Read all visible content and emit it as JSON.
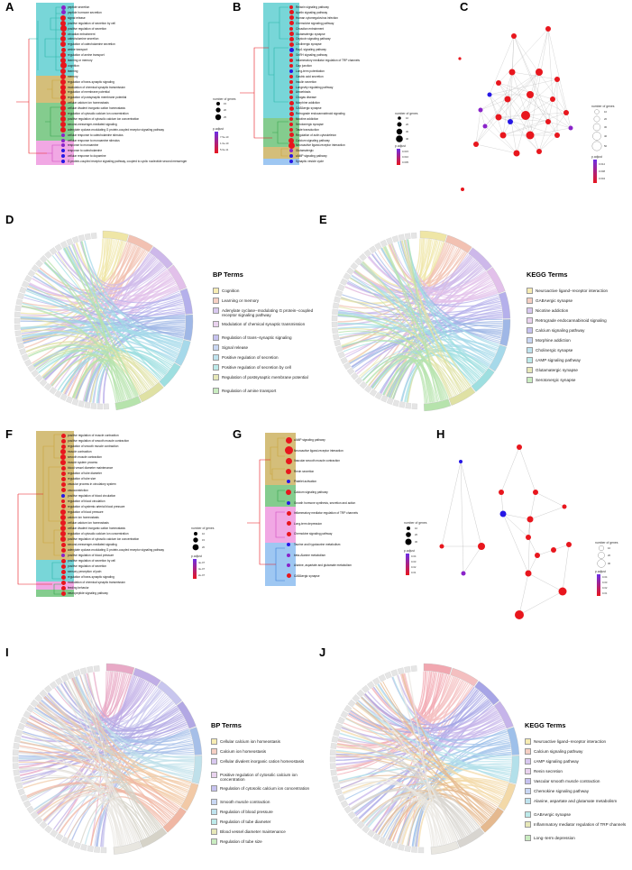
{
  "labels": {
    "A": "A",
    "B": "B",
    "C": "C",
    "D": "D",
    "E": "E",
    "F": "F",
    "G": "G",
    "H": "H",
    "I": "I",
    "J": "J"
  },
  "colors": {
    "bg_teal": "#78d6d8",
    "bg_gold": "#d4be7a",
    "bg_green": "#84cc8e",
    "bg_pink": "#f1a8e4",
    "bg_blue": "#9ec7f2",
    "red": "#e8161d",
    "purple": "#8a23c9",
    "blue": "#2617e6"
  },
  "panelA": {
    "terms": [
      "peptide secretion",
      "peptide hormone secretion",
      "signal release",
      "positive regulation of secretion by cell",
      "positive regulation of secretion",
      "circadian entrainment",
      "catecholamine secretion",
      "regulation of catecholamine secretion",
      "amine transport",
      "regulation of amine transport",
      "learning or memory",
      "cognition",
      "learning",
      "memory",
      "regulation of trans-synaptic signaling",
      "modulation of chemical synaptic transmission",
      "regulation of membrane potential",
      "regulation of postsynaptic membrane potential",
      "cellular calcium ion homeostasis",
      "cellular divalent inorganic cation homeostasis",
      "regulation of cytosolic calcium ion concentration",
      "positive regulation of cytosolic calcium ion concentration",
      "second-messenger-mediated signaling",
      "adenylate cyclase-modulating G protein-coupled receptor signaling pathway",
      "cellular response to catecholamine stimulus",
      "cellular response to monoamine stimulus",
      "response to monoamine",
      "response to catecholamine",
      "cellular response to dopamine",
      "G protein-coupled receptor signaling pathway, coupled to cyclic nucleotide second messenger"
    ],
    "legend": {
      "size_title": "number of genes",
      "sizes": [
        "15",
        "20",
        "25"
      ],
      "color_title": "p.adjust",
      "ticks": [
        "7.5e-10",
        "1.0e-10",
        "5.0e-11"
      ]
    }
  },
  "panelB": {
    "terms": [
      "Relaxin signaling pathway",
      "Apelin signaling pathway",
      "Human cytomegalovirus infection",
      "Chemokine signaling pathway",
      "Circadian entrainment",
      "Glutamatergic synapse",
      "Oxytocin signaling pathway",
      "Cholinergic synapse",
      "Rap1 signaling pathway",
      "GnRH signaling pathway",
      "Inflammatory mediator regulation of TRP channels",
      "Gap junction",
      "Long-term potentiation",
      "Gastric acid secretion",
      "Insulin secretion",
      "Longevity regulating pathway",
      "Amoebiasis",
      "Chagas disease",
      "Morphine addiction",
      "GABAergic synapse",
      "Retrograde endocannabinoid signaling",
      "Nicotine addiction",
      "Serotonergic synapse",
      "Taste transduction",
      "Regulation of actin cytoskeleton",
      "Calcium signaling pathway",
      "Neuroactive ligand-receptor interaction",
      "Glutamatergic",
      "cAMP signaling pathway",
      "Synaptic vesicle cycle"
    ],
    "legend": {
      "size_title": "number of genes",
      "sizes": [
        "10",
        "20",
        "30",
        "40"
      ],
      "color_title": "p.adjust",
      "ticks": [
        "0.015",
        "0.010",
        "0.005"
      ]
    }
  },
  "panelC": {
    "legend": {
      "size_title": "number of genes",
      "sizes": [
        "10",
        "20",
        "30",
        "40",
        "50"
      ],
      "color_title": "p.adjust",
      "ticks": [
        "0.012",
        "0.008",
        "0.004"
      ]
    }
  },
  "panelD": {
    "legend_title": "BP Terms",
    "items": [
      "Cognition",
      "Learning or memory",
      "Adenylate cyclase−modulating G protein−coupled receptor signaling pathway",
      "Modulation of chemical synaptic transmission",
      "Regulation of trans−synaptic signaling",
      "Signal release",
      "Positive regulation of secretion",
      "Positive regulation of secretion by cell",
      "Regulation of postsynaptic membrane potential",
      "Regulation of amine transport"
    ]
  },
  "panelE": {
    "legend_title": "KEGG Terms",
    "items": [
      "Neuroactive ligand−receptor interaction",
      "GABAergic synapse",
      "Nicotine addiction",
      "Retrograde endocannabinoid signaling",
      "Calcium signaling pathway",
      "Morphine addiction",
      "Cholinergic synapse",
      "cAMP signaling pathway",
      "Glutamatergic synapse",
      "Serotonergic synapse"
    ]
  },
  "panelF": {
    "terms": [
      "positive regulation of muscle contraction",
      "positive regulation of smooth muscle contraction",
      "regulation of smooth muscle contraction",
      "muscle contraction",
      "smooth muscle contraction",
      "muscle system process",
      "blood vessel diameter maintenance",
      "regulation of tube diameter",
      "regulation of tube size",
      "vascular process in circulatory system",
      "vasoconstriction",
      "positive regulation of blood circulation",
      "regulation of blood circulation",
      "regulation of systemic arterial blood pressure",
      "regulation of blood pressure",
      "calcium ion homeostasis",
      "cellular calcium ion homeostasis",
      "cellular divalent inorganic cation homeostasis",
      "regulation of cytosolic calcium ion concentration",
      "positive regulation of cytosolic calcium ion concentration",
      "second-messenger-mediated signaling",
      "adenylate cyclase-modulating G protein-coupled receptor signaling pathway",
      "positive regulation of blood pressure",
      "positive regulation of secretion by cell",
      "positive regulation of secretion",
      "sensory perception of pain",
      "regulation of trans-synaptic signaling",
      "modulation of chemical synaptic transmission",
      "feeding behavior",
      "neuropeptide signaling pathway"
    ],
    "legend": {
      "size_title": "number of genes",
      "sizes": [
        "10",
        "15",
        "20"
      ],
      "color_title": "p.adjust",
      "ticks": [
        "4e-07",
        "3e-07",
        "2e-07"
      ]
    }
  },
  "panelG": {
    "terms": [
      "cAMP signaling pathway",
      "Neuroactive ligand-receptor interaction",
      "Vascular smooth muscle contraction",
      "Renin secretion",
      "Platelet activation",
      "Calcium signaling pathway",
      "Growth hormone synthesis, secretion and action",
      "Inflammatory mediator regulation of TRP channels",
      "Long-term depression",
      "Chemokine signaling pathway",
      "Taurine and hypotaurine metabolism",
      "beta-Alanine metabolism",
      "Alanine, aspartate and glutamate metabolism",
      "GABAergic synapse"
    ],
    "legend": {
      "size_title": "number of genes",
      "sizes": [
        "10",
        "20",
        "30"
      ],
      "color_title": "p.adjust",
      "ticks": [
        "0.04",
        "0.03",
        "0.02",
        "0.01"
      ]
    }
  },
  "panelH": {
    "legend": {
      "size_title": "number of genes",
      "sizes": [
        "10",
        "20",
        "30"
      ],
      "color_title": "p.adjust",
      "ticks": [
        "0.04",
        "0.03",
        "0.02",
        "0.01"
      ]
    }
  },
  "panelI": {
    "legend_title": "BP Terms",
    "items": [
      "Cellular calcium ion homeostasis",
      "Calcium ion homeostasis",
      "Cellular divalent inorganic cation homeostasis",
      "Positive regulation of cytosolic calcium ion concentration",
      "Regulation of cytosolic calcium ion concentration",
      "Smooth muscle contraction",
      "Regulation of blood pressure",
      "Regulation of tube diameter",
      "Blood vessel diameter maintenance",
      "Regulation of tube size"
    ]
  },
  "panelJ": {
    "legend_title": "KEGG Terms",
    "items": [
      "Neuroactive ligand−receptor interaction",
      "Calcium signaling pathway",
      "cAMP signaling pathway",
      "Renin secretion",
      "Vascular smooth muscle contraction",
      "Chemokine signaling pathway",
      "Alanine, aspartate and glutamate metabolism",
      "GABAergic synapse",
      "Inflammatory mediator regulation of TRP channels",
      "Long−term depression"
    ]
  }
}
